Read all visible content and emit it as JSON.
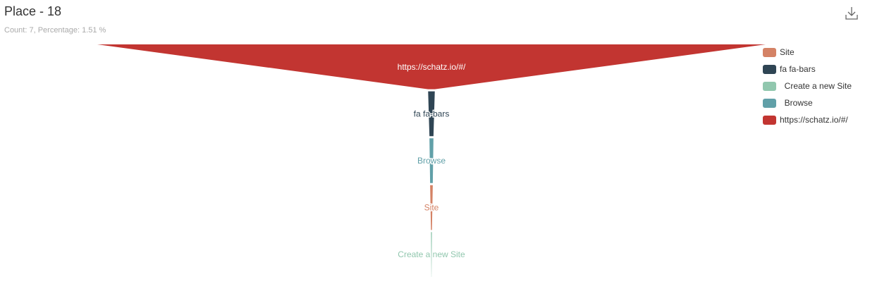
{
  "header": {
    "title": "Place - 18",
    "subtitle": "Count: 7, Percentage: 1.51 %"
  },
  "toolbar": {
    "download_icon": "download-icon"
  },
  "chart_data": {
    "type": "funnel",
    "stages": [
      {
        "label": "https://schatz.io/#/",
        "value": 100,
        "color": "#c23531"
      },
      {
        "label": "fa fa-bars",
        "value": 1,
        "color": "#2f4554"
      },
      {
        "label": "Browse",
        "value": 0.6,
        "color": "#61a0a8"
      },
      {
        "label": "Site",
        "value": 0.4,
        "color": "#d48265"
      },
      {
        "label": "Create a new Site",
        "value": 0.15,
        "color": "#91c7ae"
      }
    ],
    "legend": [
      {
        "label": "Site",
        "color": "#d48265"
      },
      {
        "label": "fa fa-bars",
        "color": "#2f4554"
      },
      {
        "label": "  Create a new Site",
        "color": "#91c7ae"
      },
      {
        "label": "  Browse",
        "color": "#61a0a8"
      },
      {
        "label": "https://schatz.io/#/",
        "color": "#c23531"
      }
    ],
    "legend_position": "right"
  }
}
